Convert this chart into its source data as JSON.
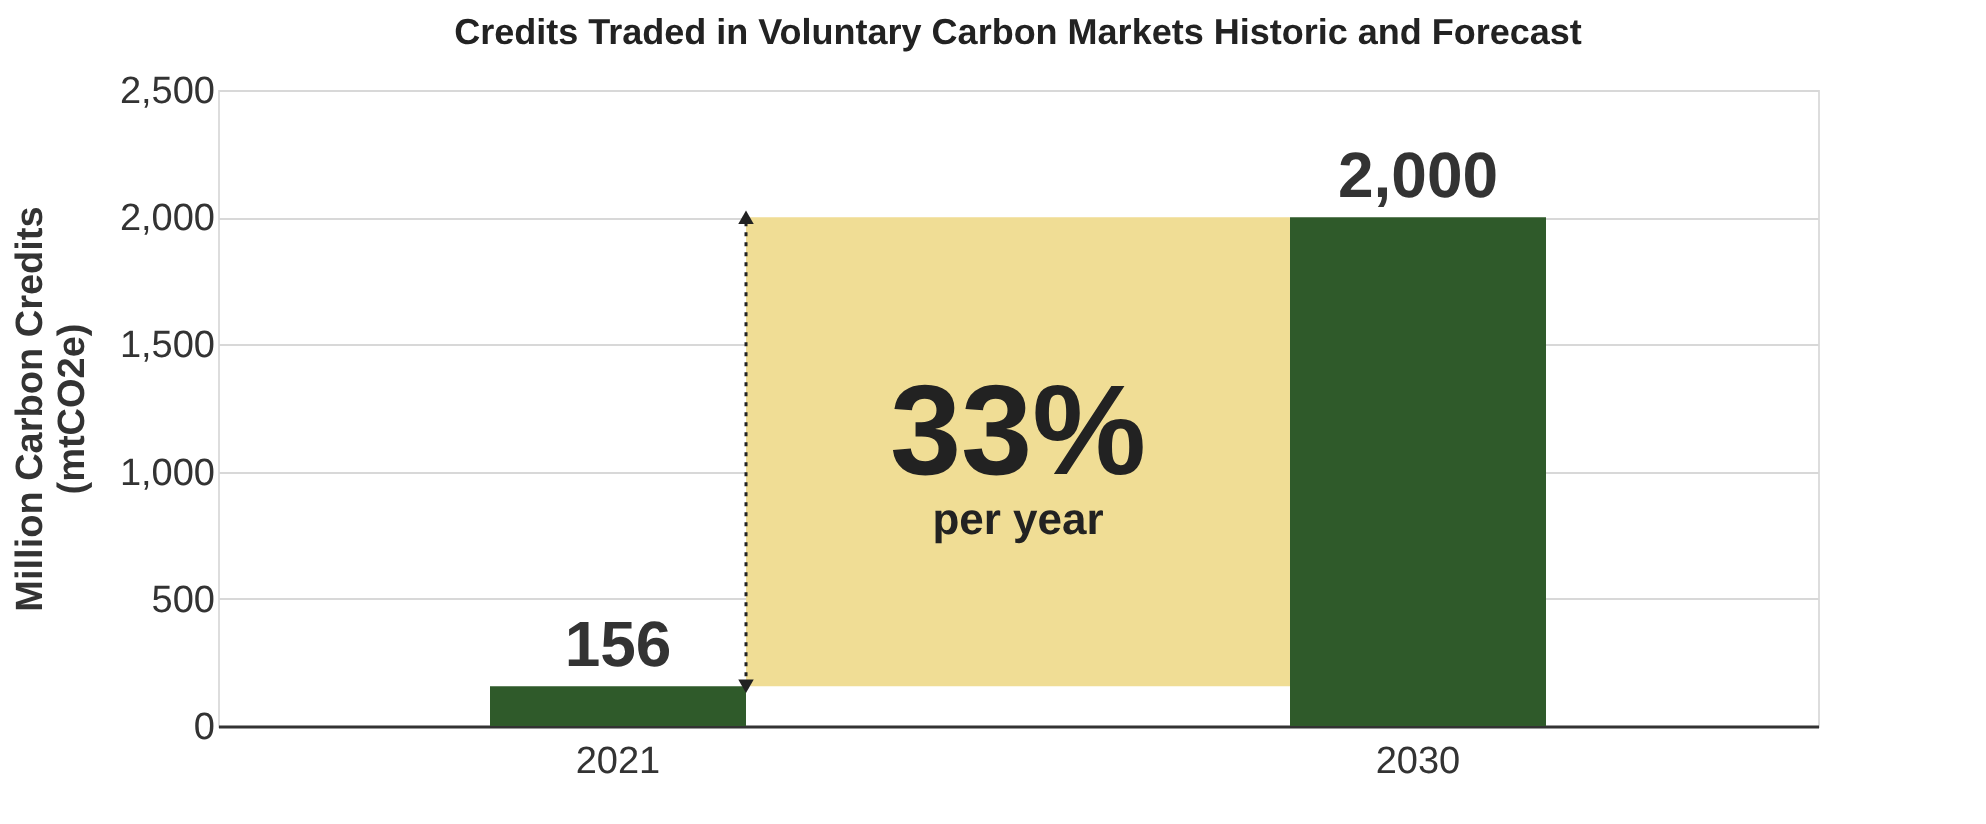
{
  "chart_data": {
    "type": "bar",
    "title": "Credits Traded in Voluntary Carbon Markets Historic and Forecast",
    "ylabel": "Million Carbon Credits\n(mtCO2e)",
    "categories": [
      "2021",
      "2030"
    ],
    "values": [
      156,
      2000
    ],
    "value_labels": [
      "156",
      "2,000"
    ],
    "color": "#2f5a2a",
    "ylim": [
      0,
      2500
    ],
    "yticks": [
      0,
      500,
      {
        "value": 1000,
        "label": "1,000"
      },
      {
        "value": 1500,
        "label": "1,500"
      },
      {
        "value": 2000,
        "label": "2,000"
      },
      {
        "value": 2500,
        "label": "2,500"
      }
    ],
    "grid": "y",
    "legend": false,
    "bands": [
      {
        "axis": "y",
        "from": 156,
        "to": 2000,
        "color": "#f0dd95"
      }
    ],
    "annotations": [
      "33%",
      "per year"
    ]
  }
}
